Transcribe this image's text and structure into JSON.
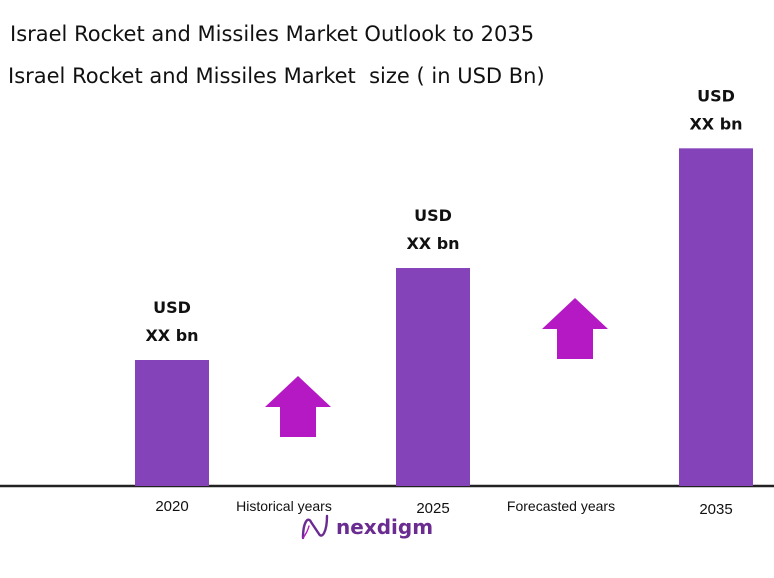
{
  "header": {
    "title": "Israel Rocket and Missiles Market Outlook to 2035",
    "subtitle": "Israel Rocket and Missiles Market  size ( in USD Bn)"
  },
  "colors": {
    "bar": "#8543b9",
    "arrow": "#b519c4",
    "axis": "#222222",
    "text": "#111111",
    "brand": "#6a2c91"
  },
  "chart_data": {
    "type": "bar",
    "categories": [
      "2020",
      "2025",
      "2035"
    ],
    "values": [
      1.0,
      1.73,
      2.68
    ],
    "value_labels": [
      [
        "USD",
        "XX bn"
      ],
      [
        "USD",
        "XX bn"
      ],
      [
        "USD",
        "XX bn"
      ]
    ],
    "period_labels": [
      "Historical years",
      "Forecasted years"
    ],
    "growth_arrows": [
      {
        "between": [
          "2020",
          "2025"
        ],
        "icon": "up-arrow-icon"
      },
      {
        "between": [
          "2025",
          "2035"
        ],
        "icon": "up-arrow-icon"
      }
    ],
    "xlabel": "",
    "ylabel": "",
    "grid": false,
    "y_axis_visible": false
  },
  "brand": {
    "name": "nexdigm",
    "icon": "nexdigm-logo-icon"
  }
}
